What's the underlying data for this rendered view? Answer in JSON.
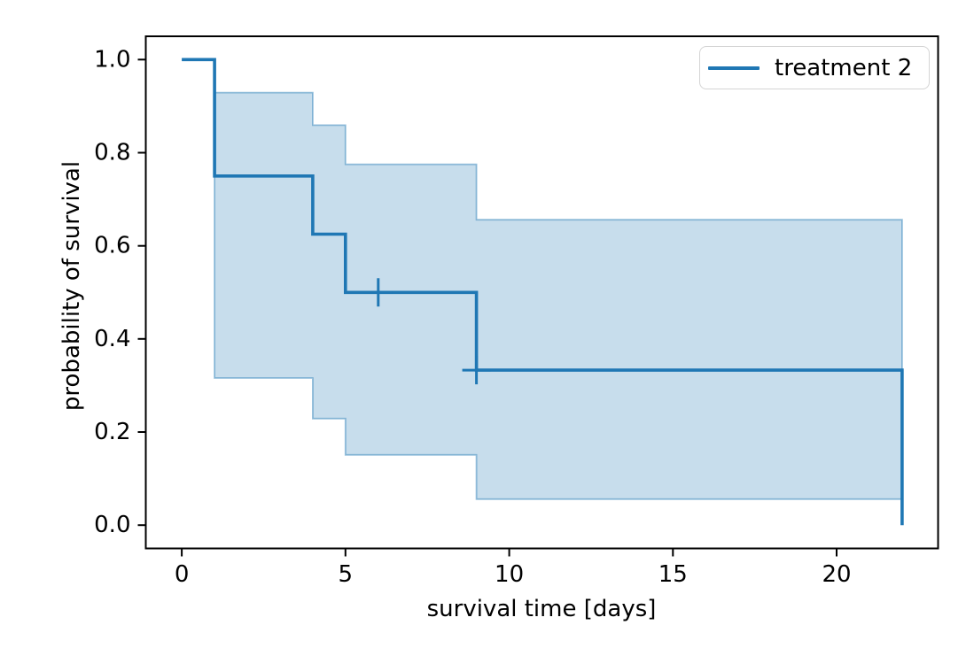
{
  "chart_data": {
    "type": "line",
    "subtype": "kaplan-meier-step",
    "title": "",
    "xlabel": "survival time [days]",
    "ylabel": "probability of survival",
    "xlim": [
      -1.1,
      23.1
    ],
    "ylim": [
      -0.05,
      1.05
    ],
    "xticks": [
      0,
      5,
      10,
      15,
      20
    ],
    "xtick_labels": [
      "0",
      "5",
      "10",
      "15",
      "20"
    ],
    "yticks": [
      0.0,
      0.2,
      0.4,
      0.6,
      0.8,
      1.0
    ],
    "ytick_labels": [
      "0.0",
      "0.2",
      "0.4",
      "0.6",
      "0.8",
      "1.0"
    ],
    "grid": false,
    "legend": {
      "position": "upper right",
      "entries": [
        {
          "label": "treatment 2",
          "color": "#1f77b4"
        }
      ]
    },
    "series": [
      {
        "name": "treatment 2",
        "drawstyle": "steps-post",
        "color": "#1f77b4",
        "x": [
          0,
          1,
          4,
          5,
          9,
          22
        ],
        "y": [
          1.0,
          0.75,
          0.625,
          0.5,
          0.333,
          0.0
        ]
      }
    ],
    "censor_marks": [
      {
        "x": 6,
        "y": 0.5
      },
      {
        "x": 9,
        "y": 0.333
      }
    ],
    "confidence_band": {
      "color": "#1f77b4",
      "fill_alpha": 0.25,
      "edge_alpha": 0.45,
      "x": [
        1,
        4,
        5,
        9
      ],
      "x_end": 22,
      "upper": [
        0.929,
        0.859,
        0.775,
        0.656
      ],
      "lower": [
        0.316,
        0.229,
        0.151,
        0.056
      ]
    },
    "axis_color": "#000000",
    "background_color": "#ffffff"
  }
}
